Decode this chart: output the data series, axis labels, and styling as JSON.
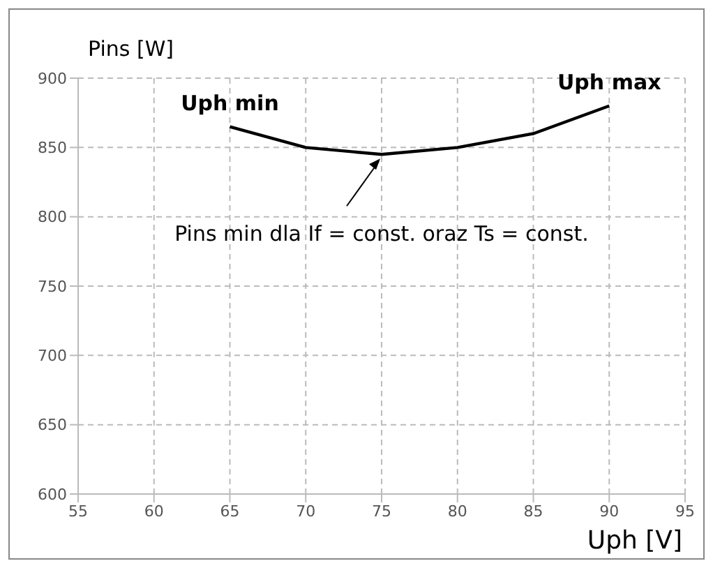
{
  "chart_data": {
    "type": "line",
    "xlabel": "Uph [V]",
    "ylabel": "Pins [W]",
    "x": [
      65,
      70,
      75,
      80,
      85,
      90
    ],
    "series": [
      {
        "color": "#000000",
        "values": [
          865,
          850,
          845,
          850,
          860,
          880
        ]
      }
    ],
    "xlim": [
      55,
      95
    ],
    "xticks": [
      55,
      60,
      65,
      70,
      75,
      80,
      85,
      90,
      95
    ],
    "ylim": [
      600,
      900
    ],
    "yticks": [
      600,
      650,
      700,
      750,
      800,
      850,
      900
    ],
    "grid": true,
    "marker": "none",
    "line_style": "solid",
    "annotations": [
      {
        "text": "Uph min",
        "x": 65,
        "y": 865
      },
      {
        "text": "Uph max",
        "x": 90,
        "y": 880
      },
      {
        "text": "Pins min dla If = const. oraz Ts = const.",
        "x": 75,
        "y": 845
      }
    ]
  }
}
